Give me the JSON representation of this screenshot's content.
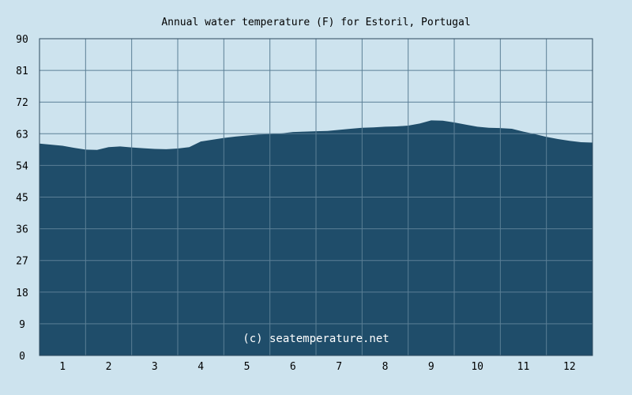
{
  "chart_data": {
    "type": "area",
    "title": "Annual water temperature (F) for Estoril, Portugal",
    "xlabel": "",
    "ylabel": "",
    "x_tick_labels": [
      "1",
      "2",
      "3",
      "4",
      "5",
      "6",
      "7",
      "8",
      "9",
      "10",
      "11",
      "12"
    ],
    "y_tick_labels": [
      "0",
      "9",
      "18",
      "27",
      "36",
      "45",
      "54",
      "63",
      "72",
      "81",
      "90"
    ],
    "ylim": [
      0,
      90
    ],
    "xlim": [
      0.5,
      12.5
    ],
    "grid": true,
    "watermark": "(c) seatemperature.net",
    "series": [
      {
        "x": [
          0.5,
          0.75,
          1.0,
          1.25,
          1.5,
          1.75,
          2.0,
          2.25,
          2.5,
          2.75,
          3.0,
          3.25,
          3.5,
          3.75,
          4.0,
          4.25,
          4.5,
          4.75,
          5.0,
          5.25,
          5.5,
          5.75,
          6.0,
          6.25,
          6.5,
          6.75,
          7.0,
          7.25,
          7.5,
          7.75,
          8.0,
          8.25,
          8.5,
          8.75,
          9.0,
          9.25,
          9.5,
          9.75,
          10.0,
          10.25,
          10.5,
          10.75,
          11.0,
          11.25,
          11.5,
          11.75,
          12.0,
          12.25,
          12.5
        ],
        "values": [
          60.2,
          59.9,
          59.6,
          59.0,
          58.5,
          58.4,
          59.2,
          59.4,
          59.1,
          58.9,
          58.7,
          58.6,
          58.8,
          59.2,
          60.8,
          61.3,
          61.8,
          62.2,
          62.5,
          62.8,
          62.9,
          63.1,
          63.5,
          63.6,
          63.7,
          63.8,
          64.1,
          64.4,
          64.7,
          64.8,
          65.0,
          65.1,
          65.3,
          65.9,
          66.8,
          66.7,
          66.2,
          65.6,
          65.0,
          64.7,
          64.6,
          64.4,
          63.6,
          62.9,
          62.1,
          61.5,
          61.0,
          60.6,
          60.5
        ]
      }
    ]
  },
  "colors": {
    "background": "#cde3ee",
    "plot_fill": "#1f4d6a",
    "grid": "#5b7f96",
    "axis": "#2d4a5e"
  }
}
